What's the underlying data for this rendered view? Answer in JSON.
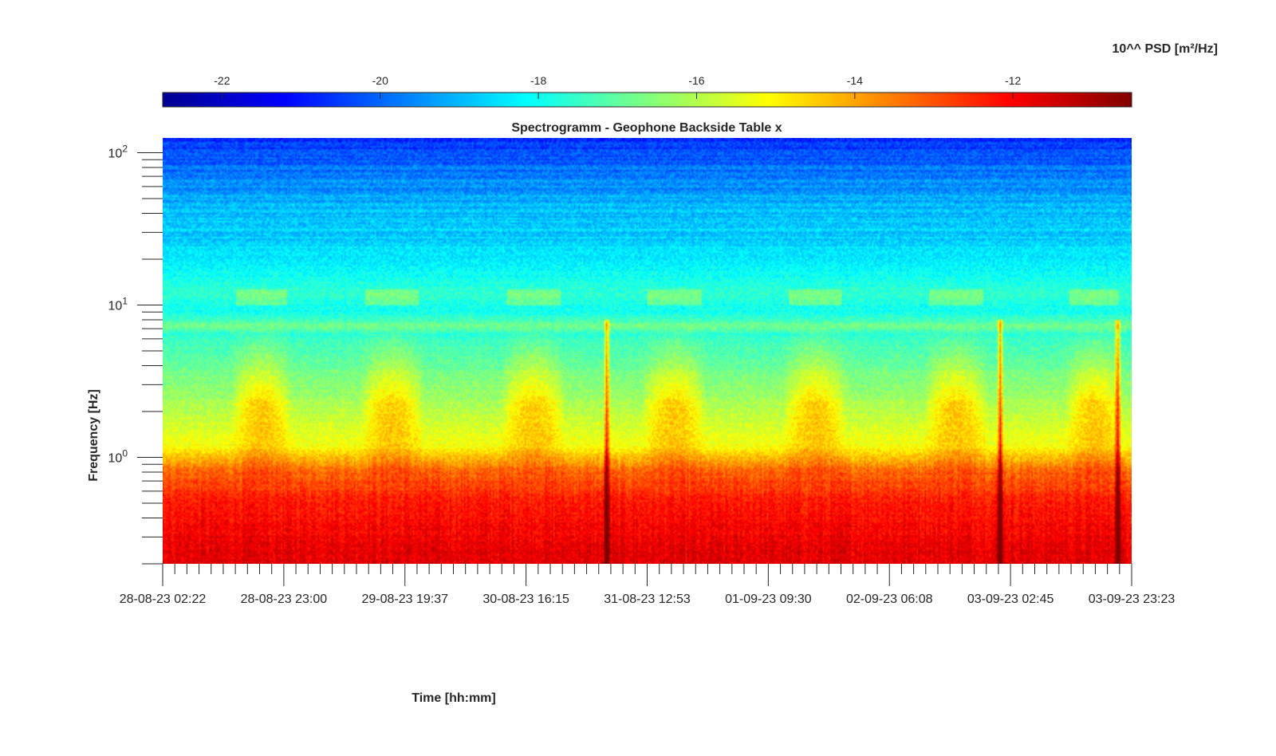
{
  "chart_data": {
    "type": "heatmap",
    "title": "Spectrogramm - Geophone Backside Table x",
    "xlabel": "Time [hh:mm]",
    "ylabel": "Frequency [Hz]",
    "colorbar_label": "10^^ PSD [m²/Hz]",
    "colormap": "jet",
    "colorbar": {
      "ticks": [
        "-22",
        "-20",
        "-18",
        "-16",
        "-14",
        "-12"
      ],
      "tick_values": [
        -22,
        -20,
        -18,
        -16,
        -14,
        -12
      ],
      "range": [
        -22.75,
        -10.5
      ],
      "placement": "top"
    },
    "yscale": "log",
    "ylim": [
      0.2,
      125
    ],
    "yticks": [
      {
        "value": 1,
        "base": "10",
        "exp": "0"
      },
      {
        "value": 10,
        "base": "10",
        "exp": "1"
      },
      {
        "value": 100,
        "base": "10",
        "exp": "2"
      }
    ],
    "xlim": [
      "28-08-23 02:22",
      "03-09-23 23:23"
    ],
    "xticks": [
      "28-08-23 02:22",
      "28-08-23 23:00",
      "29-08-23 19:37",
      "30-08-23 16:15",
      "31-08-23 12:53",
      "01-09-23 09:30",
      "02-09-23 06:08",
      "03-09-23 02:45",
      "03-09-23 23:23"
    ],
    "xtick_spacing_hours": 20.625,
    "minor_xticks_per_major": 10,
    "grid": false,
    "psd_profile": [
      {
        "freq": 0.2,
        "log10_psd": -11.6
      },
      {
        "freq": 0.5,
        "log10_psd": -12.3
      },
      {
        "freq": 0.8,
        "log10_psd": -13.2
      },
      {
        "freq": 1.2,
        "log10_psd": -15.2
      },
      {
        "freq": 3,
        "log10_psd": -16.5
      },
      {
        "freq": 6.5,
        "log10_psd": -17.6
      },
      {
        "freq": 7.3,
        "log10_psd": -16.8
      },
      {
        "freq": 9,
        "log10_psd": -18.0
      },
      {
        "freq": 12,
        "log10_psd": -17.6
      },
      {
        "freq": 20,
        "log10_psd": -18.4
      },
      {
        "freq": 40,
        "log10_psd": -18.9
      },
      {
        "freq": 80,
        "log10_psd": -19.9
      },
      {
        "freq": 125,
        "log10_psd": -20.8
      }
    ],
    "daytime_activity_bursts": [
      {
        "start": "28-08-23 14:00",
        "end": "29-08-23 00:30"
      },
      {
        "start": "29-08-23 12:00",
        "end": "29-08-23 23:00"
      },
      {
        "start": "30-08-23 12:00",
        "end": "30-08-23 23:00"
      },
      {
        "start": "31-08-23 12:00",
        "end": "31-08-23 23:00"
      },
      {
        "start": "01-09-23 12:00",
        "end": "01-09-23 23:00"
      },
      {
        "start": "02-09-23 12:00",
        "end": "02-09-23 23:00"
      },
      {
        "start": "03-09-23 12:00",
        "end": "03-09-23 22:00"
      }
    ],
    "transient_events": [
      "31-08-23 06:00",
      "03-09-23 01:00",
      "03-09-23 21:00"
    ]
  }
}
